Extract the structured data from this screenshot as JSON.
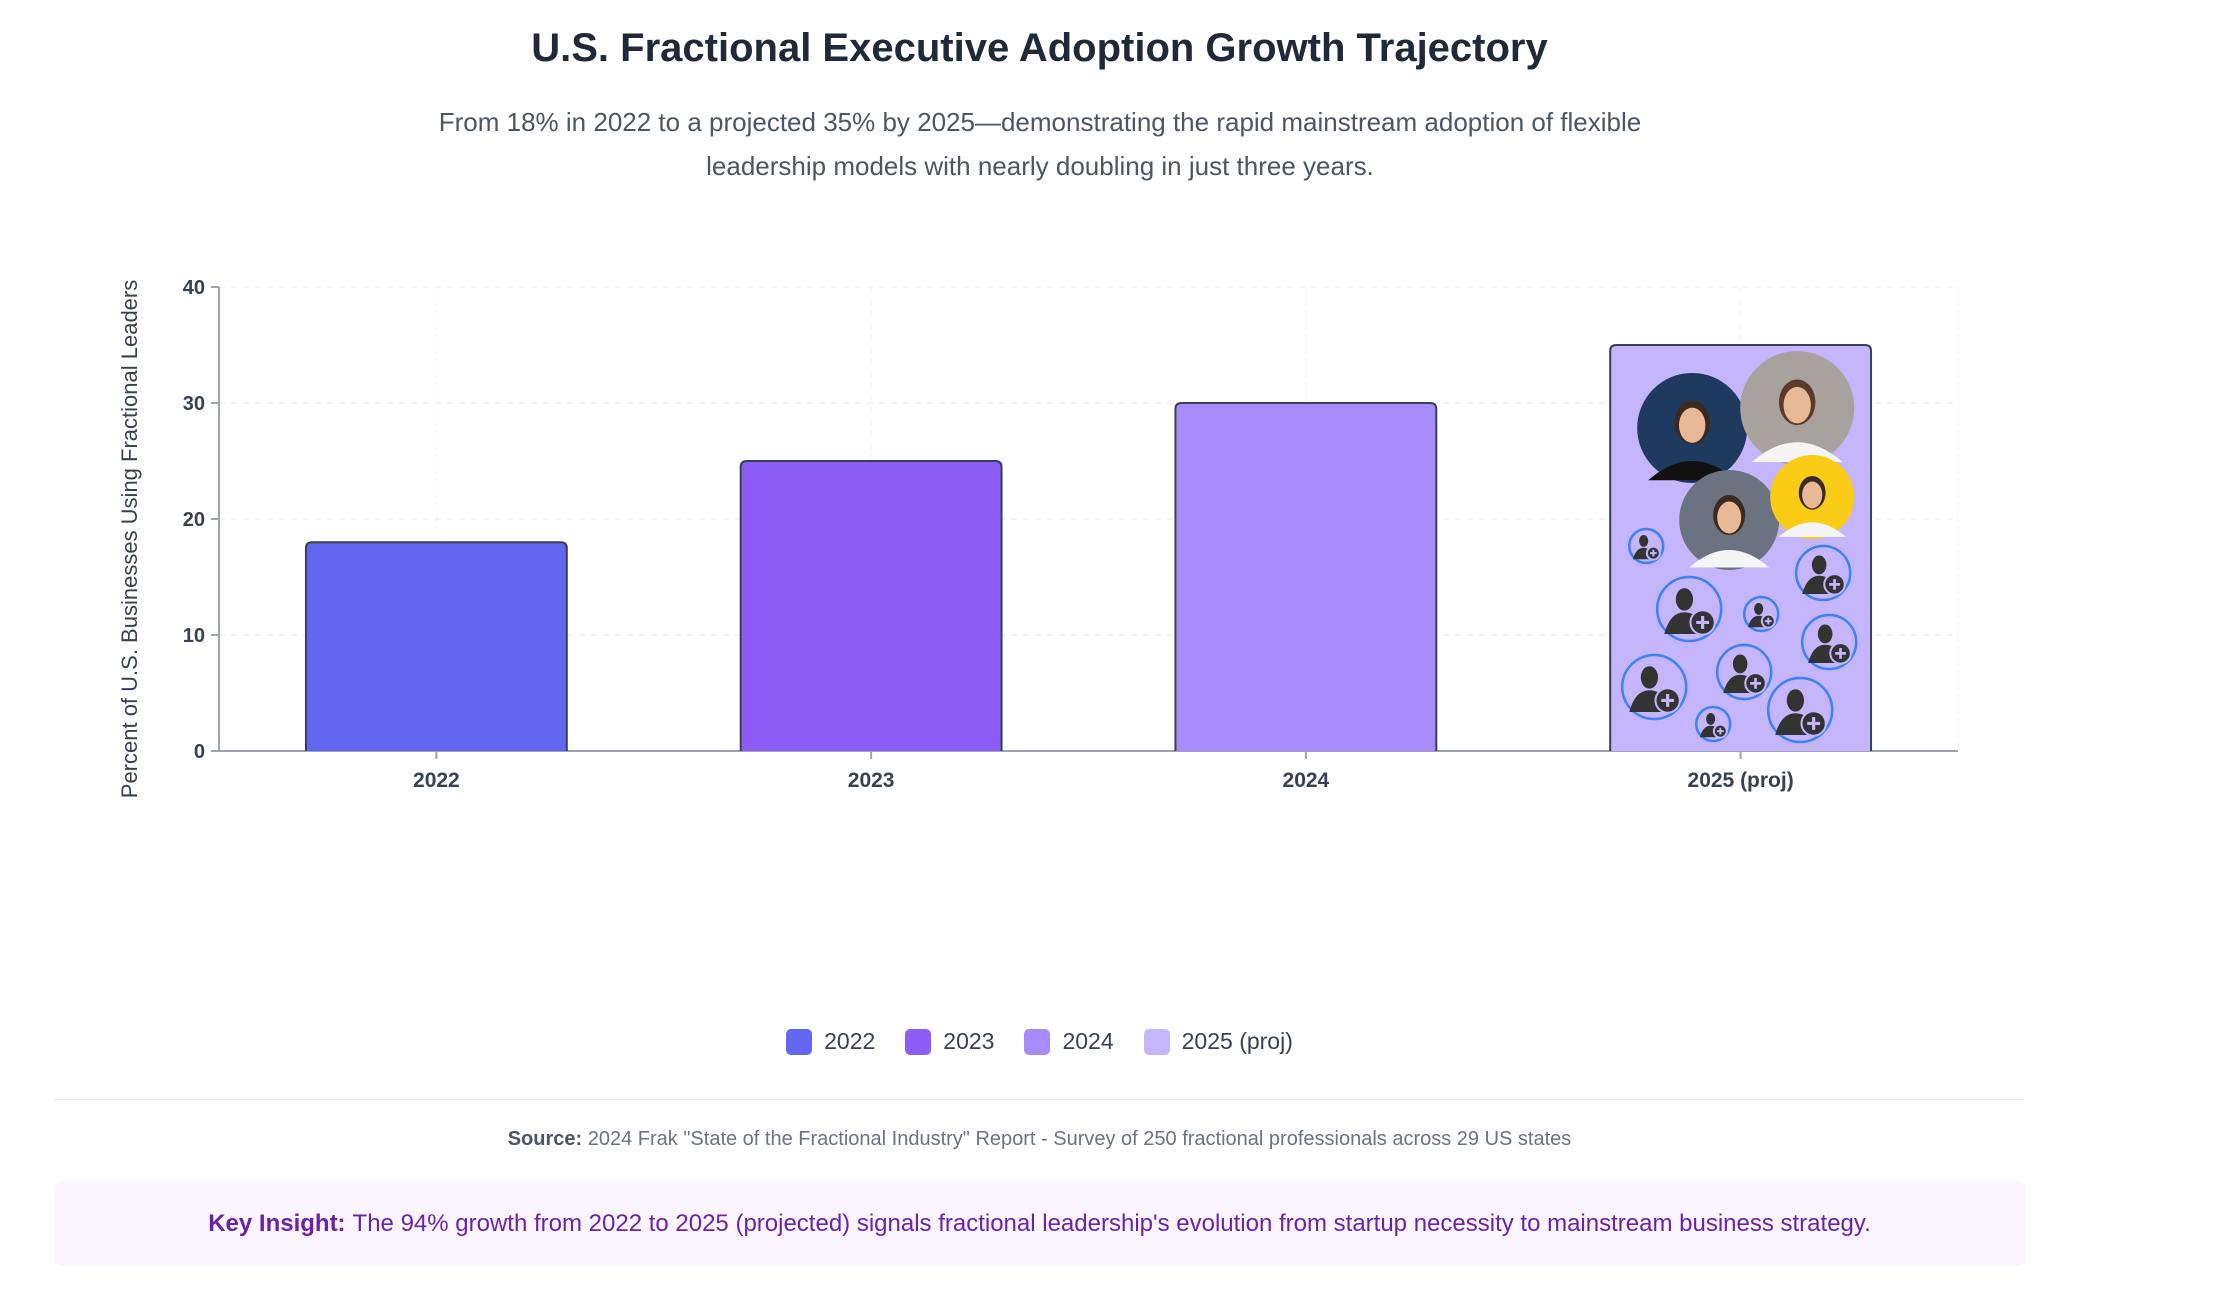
{
  "chart_data": {
    "type": "bar",
    "title": "U.S. Fractional Executive Adoption Growth Trajectory",
    "subtitle": "From 18% in 2022 to a projected 35% by 2025—demonstrating the rapid mainstream adoption of flexible leadership models with nearly doubling in just three years.",
    "xlabel": "",
    "ylabel": "Percent of U.S. Businesses Using Fractional Leaders",
    "categories": [
      "2022",
      "2023",
      "2024",
      "2025 (proj)"
    ],
    "values": [
      18,
      25,
      30,
      35
    ],
    "colors": [
      "#6366f1",
      "#8b5cf6",
      "#a78bfa",
      "#c4b5fd"
    ],
    "ylim": [
      0,
      40
    ],
    "yticks": [
      0,
      10,
      20,
      30,
      40
    ],
    "grid": true,
    "legend": {
      "placement": "bottom-center",
      "entries": [
        "2022",
        "2023",
        "2024",
        "2025 (proj)"
      ]
    }
  },
  "source": {
    "label": "Source:",
    "text": "2024 Frak \"State of the Fractional Industry\" Report - Survey of 250 fractional professionals across 29 US states"
  },
  "insight": {
    "label": "Key Insight:",
    "text": "The 94% growth from 2022 to 2025 (projected) signals fractional leadership's evolution from startup necessity to mainstream business strategy."
  },
  "bar_decoration": {
    "photo_backgrounds": [
      "#1e3a5f",
      "#a8a29e",
      "#6b7280",
      "#facc15"
    ],
    "icon_ring_color": "#3b82f6"
  }
}
